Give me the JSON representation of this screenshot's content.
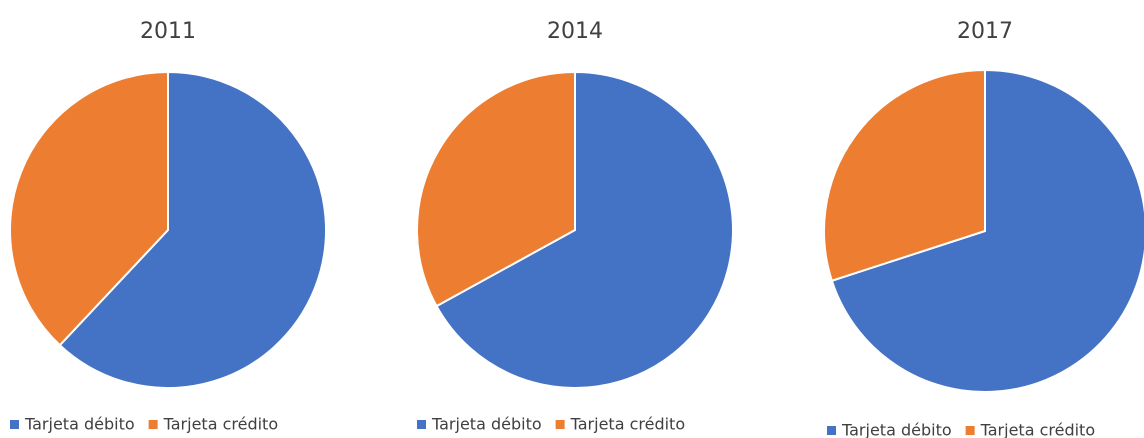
{
  "chart_data": [
    {
      "type": "pie",
      "title": "2011",
      "categories": [
        "Tarjeta débito",
        "Tarjeta crédito"
      ],
      "values": [
        62,
        38
      ],
      "colors": [
        "#4472c4",
        "#ed7d31"
      ]
    },
    {
      "type": "pie",
      "title": "2014",
      "categories": [
        "Tarjeta débito",
        "Tarjeta crédito"
      ],
      "values": [
        67,
        33
      ],
      "colors": [
        "#4472c4",
        "#ed7d31"
      ]
    },
    {
      "type": "pie",
      "title": "2017",
      "categories": [
        "Tarjeta débito",
        "Tarjeta crédito"
      ],
      "values": [
        70,
        30
      ],
      "colors": [
        "#4472c4",
        "#ed7d31"
      ]
    }
  ]
}
